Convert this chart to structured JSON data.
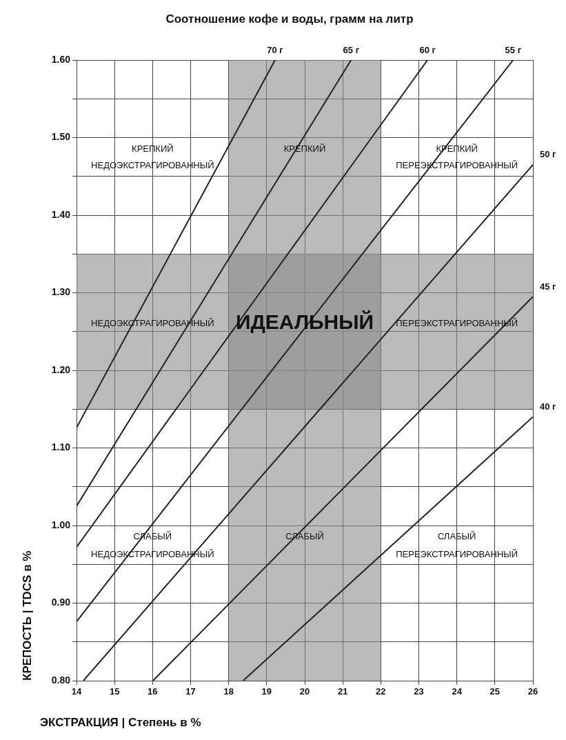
{
  "chart_data": {
    "type": "line",
    "title": "Соотношение кофе и воды, грамм на литр",
    "xlabel": "ЭКСТРАКЦИЯ | Степень в %",
    "ylabel": "КРЕПОСТЬ | TDCS в %",
    "xlim": [
      14,
      26
    ],
    "ylim": [
      0.8,
      1.6
    ],
    "xticks": [
      14,
      15,
      16,
      17,
      18,
      19,
      20,
      21,
      22,
      23,
      24,
      25,
      26
    ],
    "yticks": [
      {
        "value": 0.8,
        "label": "0.80"
      },
      {
        "value": 0.85,
        "label": null
      },
      {
        "value": 0.9,
        "label": "0.90"
      },
      {
        "value": 0.95,
        "label": null
      },
      {
        "value": 1.0,
        "label": "1.00"
      },
      {
        "value": 1.05,
        "label": null
      },
      {
        "value": 1.1,
        "label": "1.10"
      },
      {
        "value": 1.15,
        "label": null
      },
      {
        "value": 1.2,
        "label": "1.20"
      },
      {
        "value": 1.25,
        "label": null
      },
      {
        "value": 1.3,
        "label": "1.30"
      },
      {
        "value": 1.35,
        "label": null
      },
      {
        "value": 1.4,
        "label": "1.40"
      },
      {
        "value": 1.45,
        "label": null
      },
      {
        "value": 1.5,
        "label": "1.50"
      },
      {
        "value": 1.55,
        "label": null
      },
      {
        "value": 1.6,
        "label": "1.60"
      }
    ],
    "grid": true,
    "legend": false,
    "marker": "none",
    "line_style": "solid",
    "series": [
      {
        "name": "70 г",
        "color": "#222222",
        "x": [
          14,
          19.22
        ],
        "values": [
          1.126,
          1.6
        ]
      },
      {
        "name": "65 г",
        "color": "#222222",
        "x": [
          14,
          21.22
        ],
        "values": [
          1.025,
          1.6
        ]
      },
      {
        "name": "60 г",
        "color": "#222222",
        "x": [
          14,
          23.23
        ],
        "values": [
          0.972,
          1.6
        ]
      },
      {
        "name": "55 г",
        "color": "#222222",
        "x": [
          14,
          25.48
        ],
        "values": [
          0.876,
          1.6
        ]
      },
      {
        "name": "50 г",
        "color": "#222222",
        "x": [
          14.18,
          26
        ],
        "values": [
          0.8,
          1.465
        ]
      },
      {
        "name": "45 г",
        "color": "#222222",
        "x": [
          16.01,
          26
        ],
        "values": [
          0.8,
          1.295
        ]
      },
      {
        "name": "40 г",
        "color": "#222222",
        "x": [
          18.38,
          26
        ],
        "values": [
          0.8,
          1.14
        ]
      }
    ],
    "bands": [
      {
        "axis": "x",
        "from": 18,
        "to": 22,
        "label": "ИДЕАЛЬНЫЙ",
        "color": "#8c8c8c"
      },
      {
        "axis": "y",
        "from": 1.15,
        "to": 1.35,
        "color": "#8c8c8c"
      }
    ],
    "annotations": [
      "КРЕПКИЙ",
      "НЕДОЭКСТРАГИРОВАННЫЙ",
      "КРЕПКИЙ",
      "КРЕПКИЙ",
      "ПЕРЕЭКСТРАГИРОВАННЫЙ",
      "НЕДОЭКСТРАГИРОВАННЫЙ",
      "ПЕРЕЭКСТРАГИРОВАННЫЙ",
      "СЛАБЫЙ",
      "НЕДОЭКСТРАГИРОВАННЫЙ",
      "СЛАБЫЙ",
      "СЛАБЫЙ",
      "ПЕРЕЭКСТРАГИРОВАННЫЙ"
    ]
  }
}
